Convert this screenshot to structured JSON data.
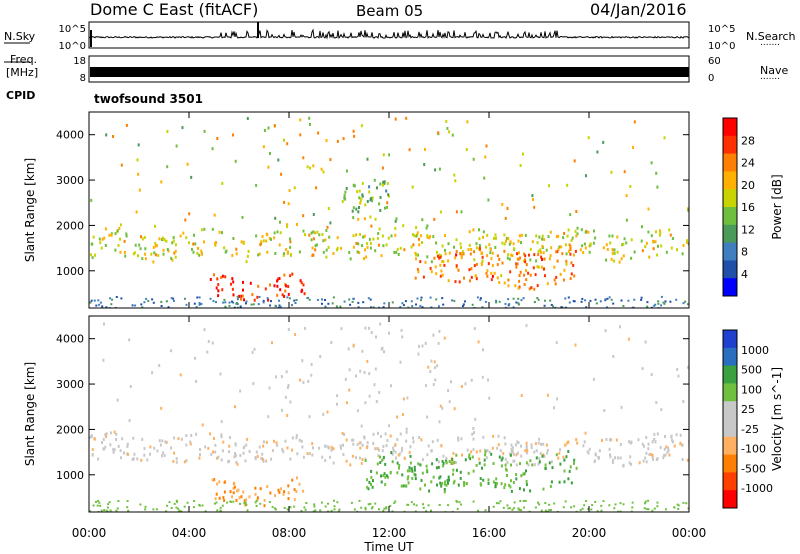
{
  "header": {
    "title": "Dome C East (fitACF)",
    "beam": "Beam 05",
    "date": "04/Jan/2016"
  },
  "side_labels": {
    "nsky": "N.Sky",
    "nsearch": "N.Search",
    "freq_line1": "Freq.",
    "freq_line2": "[MHz]",
    "nave": "Nave",
    "cpid": "CPID",
    "dots": "......."
  },
  "cpid_value": "twofsound 3501",
  "colors": {
    "frame": "#000000",
    "noise_line": "#000000",
    "freq_bar": "#000000",
    "power_scale": [
      "#0000ff",
      "#1f4fa8",
      "#3f7fbf",
      "#4a9a5a",
      "#6fbf3f",
      "#c8d400",
      "#ffb000",
      "#ff7f00",
      "#ff3000",
      "#ff0000"
    ],
    "velocity_scale": [
      "#ff0000",
      "#ff4000",
      "#ff8000",
      "#ffb060",
      "#c8c8c8",
      "#c8c8c8",
      "#70c040",
      "#3aa040",
      "#2a6fbf",
      "#2040d0"
    ]
  },
  "chart_data": [
    {
      "type": "line",
      "name": "noise-panel",
      "left_ticks": [
        "10^5",
        "10^0"
      ],
      "right_ticks": [
        "10^5",
        "10^0"
      ],
      "note": "sky and search noise vs time"
    },
    {
      "type": "line",
      "name": "freq-nave-panel",
      "left_ticks": [
        "18",
        "8"
      ],
      "right_ticks": [
        "60",
        "0"
      ]
    },
    {
      "type": "heatmap",
      "name": "power-panel",
      "ylabel": "Slant Range [km]",
      "yticks": [
        "4000",
        "3000",
        "2000",
        "1000"
      ],
      "ylim": [
        180,
        4500
      ],
      "xlim_hours": [
        0,
        24
      ],
      "colorbar_label": "Power [dB]",
      "colorbar_ticks": [
        "28",
        "24",
        "20",
        "16",
        "12",
        "8",
        "4"
      ],
      "clim": [
        0,
        32
      ],
      "features": [
        {
          "t0": 0,
          "t1": 24,
          "r0": 1300,
          "r1": 1900,
          "level": 18
        },
        {
          "t0": 4.8,
          "t1": 8.6,
          "r0": 400,
          "r1": 900,
          "level": 28
        },
        {
          "t0": 10,
          "t1": 12,
          "r0": 2200,
          "r1": 3000,
          "level": 14
        },
        {
          "t0": 13,
          "t1": 19.5,
          "r0": 700,
          "r1": 1500,
          "level": 24
        }
      ]
    },
    {
      "type": "heatmap",
      "name": "velocity-panel",
      "ylabel": "Slant Range [km]",
      "yticks": [
        "4000",
        "3000",
        "2000",
        "1000"
      ],
      "ylim": [
        180,
        4500
      ],
      "xlim_hours": [
        0,
        24
      ],
      "colorbar_label": "Velocity [m s^-1]",
      "colorbar_ticks": [
        "1000",
        "500",
        "100",
        "25",
        "-25",
        "-100",
        "-500",
        "-1000"
      ],
      "xticks": [
        "00:00",
        "04:00",
        "08:00",
        "12:00",
        "16:00",
        "20:00",
        "00:00"
      ],
      "xlabel": "Time UT",
      "features": [
        {
          "t0": 0,
          "t1": 24,
          "r0": 1300,
          "r1": 1900,
          "level": 0
        },
        {
          "t0": 4.8,
          "t1": 8.6,
          "r0": 400,
          "r1": 900,
          "level": -100
        },
        {
          "t0": 11,
          "t1": 19.5,
          "r0": 700,
          "r1": 1500,
          "level": 100
        }
      ]
    }
  ]
}
